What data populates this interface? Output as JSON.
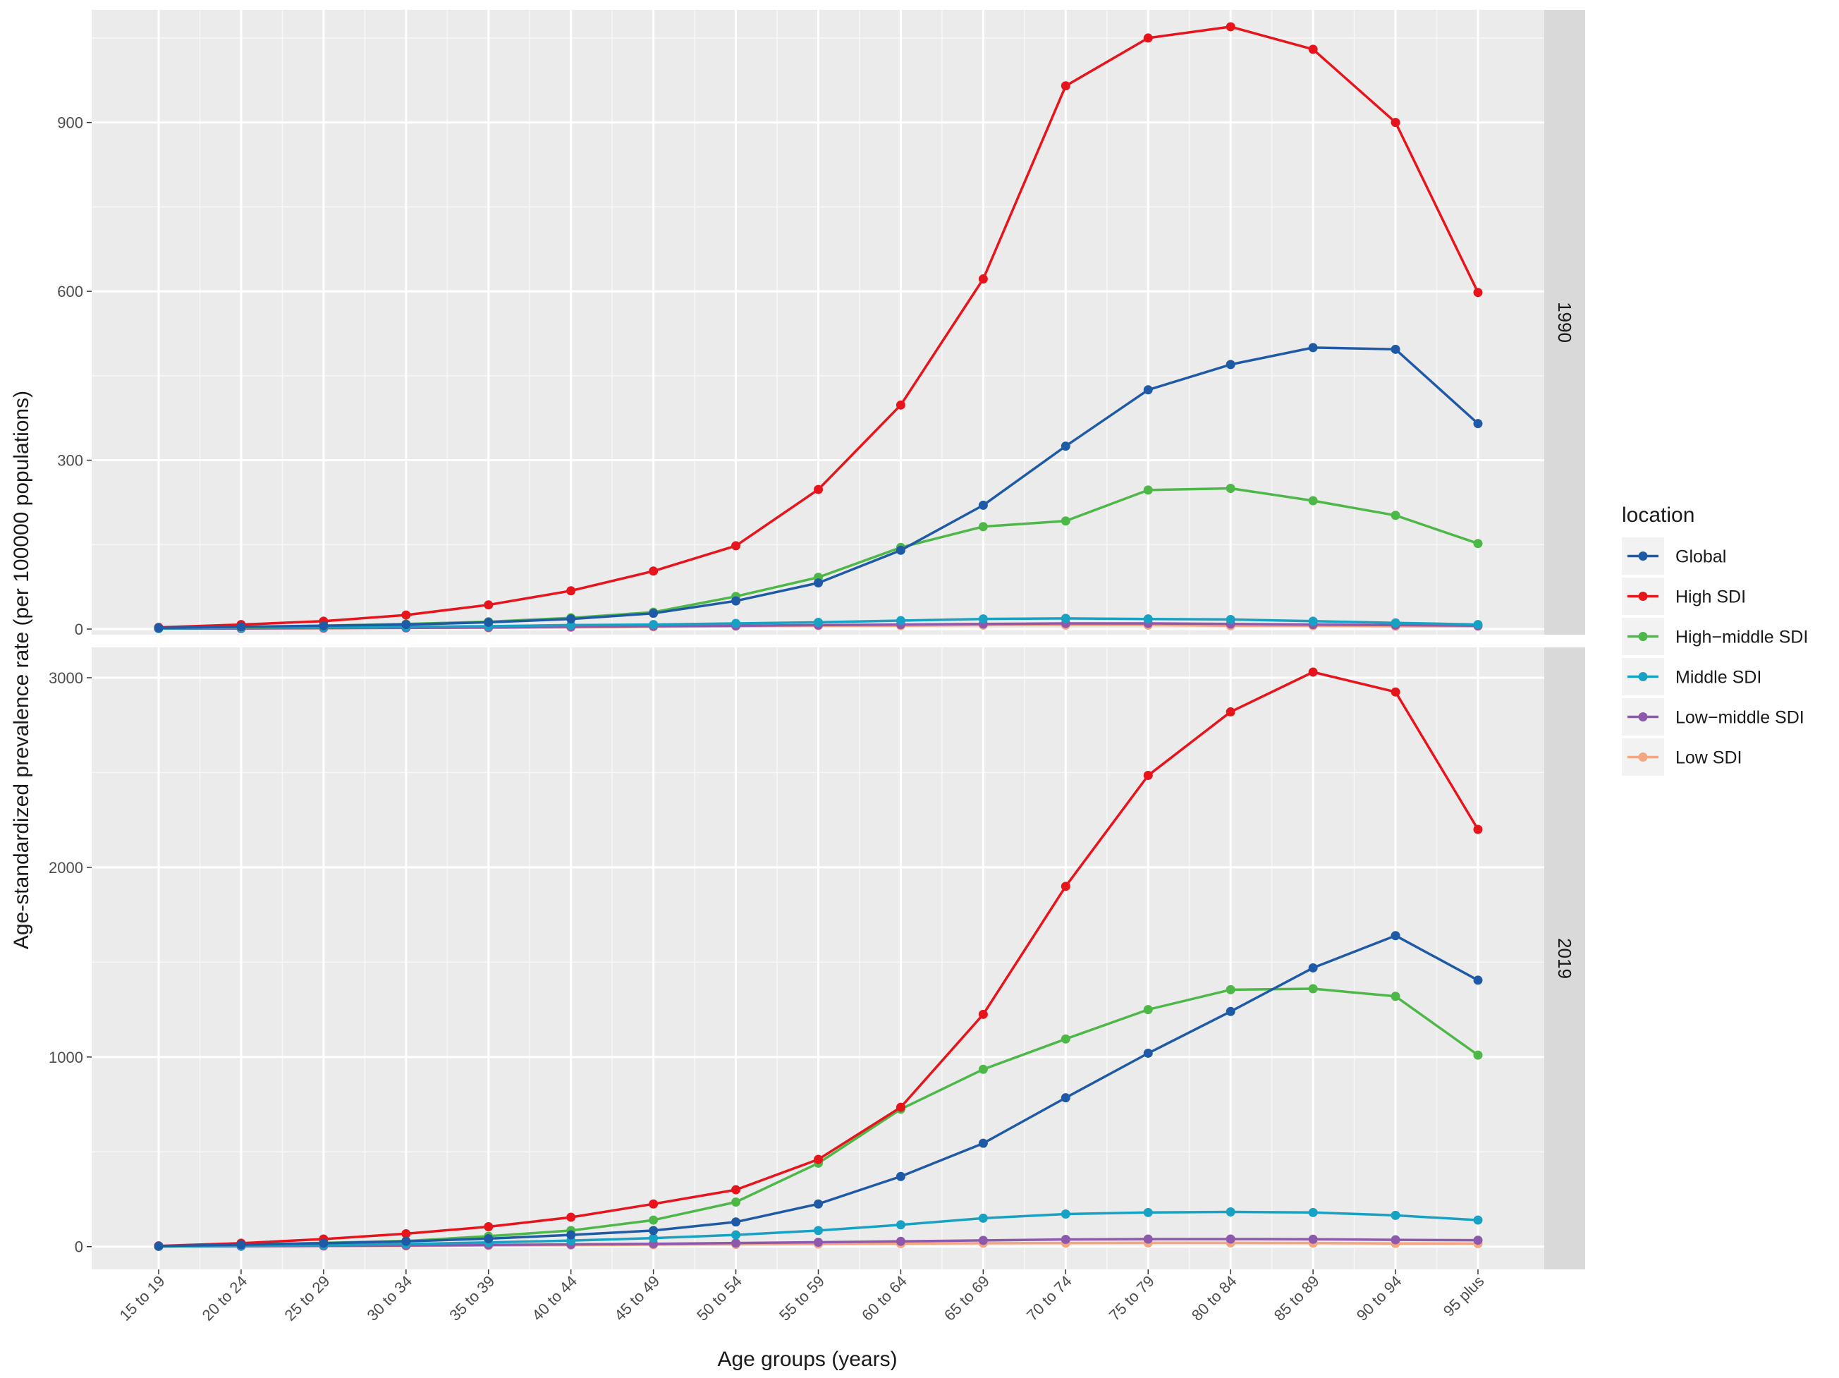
{
  "chart_data": {
    "type": "line",
    "xlabel": "Age groups (years)",
    "ylabel": "Age-standardized prevalence rate (per 100000 populations)",
    "categories": [
      "15 to 19",
      "20 to 24",
      "25 to 29",
      "30 to 34",
      "35 to 39",
      "40 to 44",
      "45 to 49",
      "50 to 54",
      "55 to 59",
      "60 to 64",
      "65 to 69",
      "70 to 74",
      "75 to 79",
      "80 to 84",
      "85 to 89",
      "90 to 94",
      "95 plus"
    ],
    "legend": {
      "title": "location",
      "position": "right"
    },
    "grid": true,
    "facet_variable": "year",
    "facets": [
      {
        "label": "1990",
        "ylim": [
          -10,
          1100
        ],
        "yticks": [
          0,
          300,
          600,
          900
        ],
        "series": [
          {
            "name": "Global",
            "color": "#1f5aa6",
            "values": [
              2,
              4,
              6,
              8,
              12,
              18,
              28,
              50,
              82,
              140,
              220,
              325,
              425,
              470,
              500,
              497,
              365
            ]
          },
          {
            "name": "High SDI",
            "color": "#e8141c",
            "values": [
              3,
              8,
              14,
              25,
              43,
              68,
              103,
              148,
              248,
              398,
              622,
              965,
              1050,
              1070,
              1030,
              900,
              598
            ]
          },
          {
            "name": "High−middle SDI",
            "color": "#4db848",
            "values": [
              2,
              3,
              6,
              9,
              13,
              20,
              30,
              58,
              92,
              145,
              182,
              192,
              247,
              250,
              228,
              202,
              152
            ]
          },
          {
            "name": "Middle SDI",
            "color": "#17a2c4",
            "values": [
              1,
              2,
              3,
              4,
              5,
              7,
              8,
              10,
              12,
              15,
              18,
              19,
              18,
              17,
              14,
              11,
              8
            ]
          },
          {
            "name": "Low−middle SDI",
            "color": "#8e59ad",
            "values": [
              1,
              1,
              2,
              2,
              3,
              4,
              5,
              6,
              7,
              8,
              9,
              10,
              10,
              9,
              8,
              7,
              6
            ]
          },
          {
            "name": "Low SDI",
            "color": "#f4a582",
            "values": [
              1,
              1,
              1,
              2,
              2,
              3,
              4,
              5,
              6,
              6,
              7,
              7,
              7,
              6,
              6,
              5,
              5
            ]
          }
        ]
      },
      {
        "label": "2019",
        "ylim": [
          -120,
          3160
        ],
        "yticks": [
          0,
          1000,
          2000,
          3000
        ],
        "series": [
          {
            "name": "Global",
            "color": "#1f5aa6",
            "values": [
              3,
              10,
              18,
              28,
              42,
              62,
              85,
              130,
              225,
              370,
              545,
              785,
              1020,
              1240,
              1470,
              1640,
              1405
            ]
          },
          {
            "name": "High SDI",
            "color": "#e8141c",
            "values": [
              4,
              18,
              40,
              68,
              105,
              155,
              225,
              300,
              460,
              735,
              1225,
              1900,
              2485,
              2820,
              3030,
              2925,
              2200
            ]
          },
          {
            "name": "High−middle SDI",
            "color": "#4db848",
            "values": [
              2,
              10,
              20,
              30,
              55,
              85,
              140,
              235,
              440,
              725,
              935,
              1095,
              1250,
              1355,
              1360,
              1320,
              1010
            ]
          },
          {
            "name": "Middle SDI",
            "color": "#17a2c4",
            "values": [
              1,
              4,
              8,
              14,
              22,
              32,
              45,
              62,
              85,
              115,
              150,
              172,
              180,
              183,
              180,
              165,
              140
            ]
          },
          {
            "name": "Low−middle SDI",
            "color": "#8e59ad",
            "values": [
              1,
              2,
              4,
              6,
              9,
              12,
              15,
              19,
              23,
              28,
              33,
              38,
              40,
              40,
              39,
              36,
              34
            ]
          },
          {
            "name": "Low SDI",
            "color": "#f4a582",
            "values": [
              1,
              2,
              3,
              4,
              6,
              8,
              10,
              12,
              14,
              16,
              18,
              19,
              20,
              20,
              19,
              17,
              16
            ]
          }
        ]
      }
    ]
  }
}
